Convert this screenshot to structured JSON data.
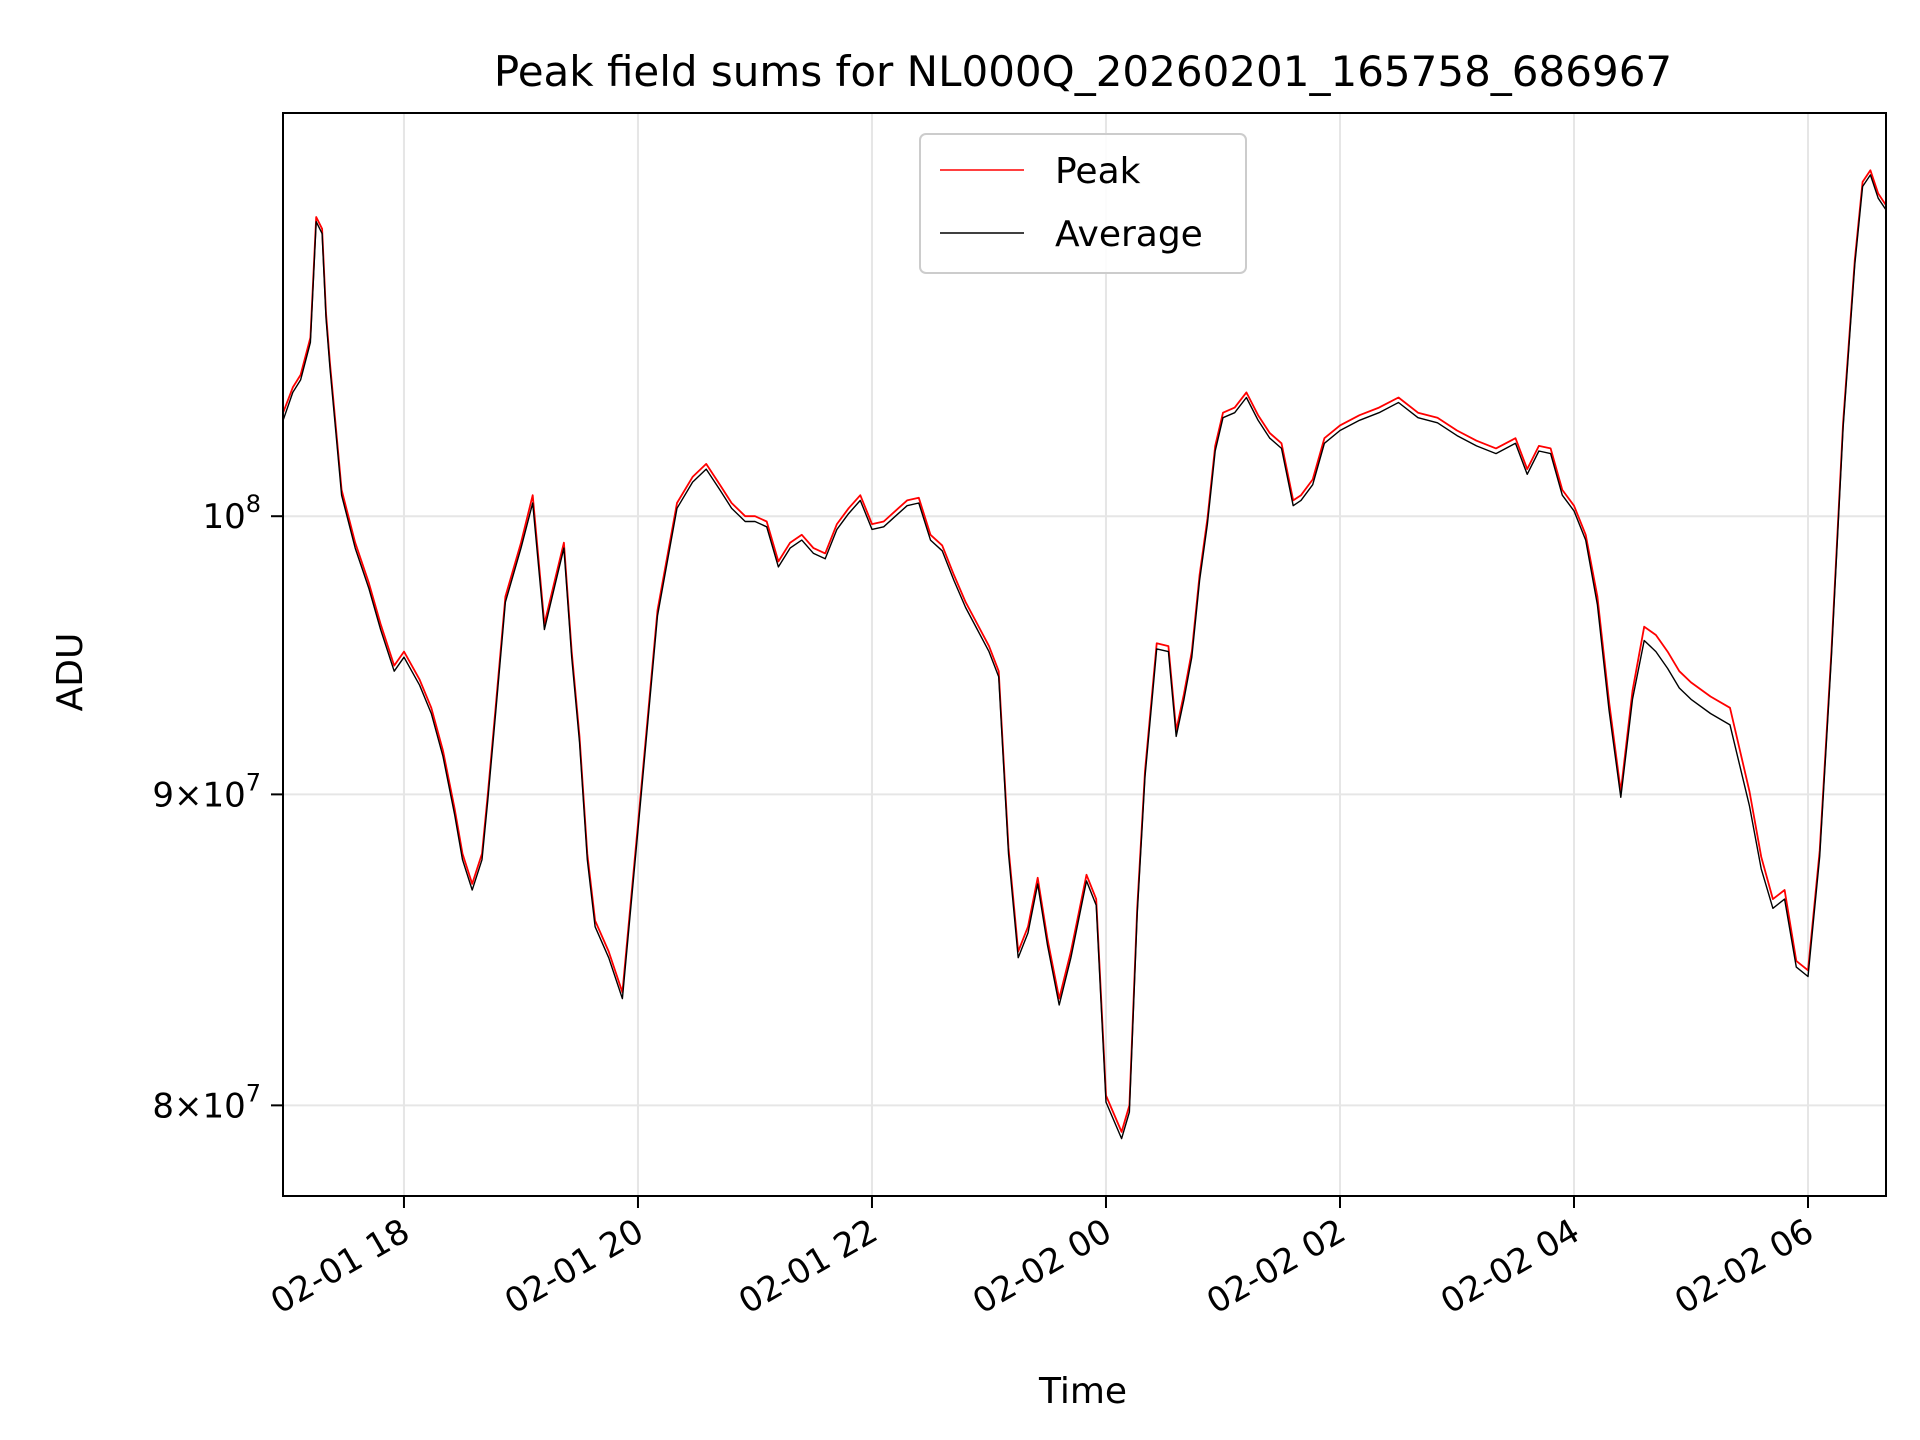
{
  "chart_data": {
    "type": "line",
    "title": "Peak field sums for NL000Q_20260201_165758_686967",
    "xlabel": "Time",
    "ylabel": "ADU",
    "x_scale": "time",
    "y_scale": "log",
    "xlim": [
      "2026-02-01T16:57:58",
      "2026-02-02T06:40:00"
    ],
    "ylim": [
      77300000,
      116500000
    ],
    "grid": true,
    "legend_position": "top-center",
    "x_ticks": [
      {
        "value": "2026-02-01T18:00:00",
        "label": "02-01 18"
      },
      {
        "value": "2026-02-01T20:00:00",
        "label": "02-01 20"
      },
      {
        "value": "2026-02-01T22:00:00",
        "label": "02-01 22"
      },
      {
        "value": "2026-02-02T00:00:00",
        "label": "02-02 00"
      },
      {
        "value": "2026-02-02T02:00:00",
        "label": "02-02 02"
      },
      {
        "value": "2026-02-02T04:00:00",
        "label": "02-02 04"
      },
      {
        "value": "2026-02-02T06:00:00",
        "label": "02-02 06"
      }
    ],
    "y_ticks": [
      {
        "value": 80000000,
        "base": "8",
        "exp": "7"
      },
      {
        "value": 90000000,
        "base": "9",
        "exp": "7"
      },
      {
        "value": 100000000,
        "base": "",
        "exp": "8"
      }
    ],
    "series": [
      {
        "name": "Peak",
        "color": "#ff0000",
        "x": [
          "2026-02-01T16:58:00",
          "2026-02-01T17:03:00",
          "2026-02-01T17:07:00",
          "2026-02-01T17:12:00",
          "2026-02-01T17:15:00",
          "2026-02-01T17:18:00",
          "2026-02-01T17:20:00",
          "2026-02-01T17:22:00",
          "2026-02-01T17:25:00",
          "2026-02-01T17:28:00",
          "2026-02-01T17:35:00",
          "2026-02-01T17:42:00",
          "2026-02-01T17:48:00",
          "2026-02-01T17:55:00",
          "2026-02-01T18:00:00",
          "2026-02-01T18:08:00",
          "2026-02-01T18:14:00",
          "2026-02-01T18:20:00",
          "2026-02-01T18:26:00",
          "2026-02-01T18:30:00",
          "2026-02-01T18:35:00",
          "2026-02-01T18:40:00",
          "2026-02-01T18:43:00",
          "2026-02-01T18:47:00",
          "2026-02-01T18:52:00",
          "2026-02-01T19:00:00",
          "2026-02-01T19:06:00",
          "2026-02-01T19:12:00",
          "2026-02-01T19:18:00",
          "2026-02-01T19:22:00",
          "2026-02-01T19:26:00",
          "2026-02-01T19:30:00",
          "2026-02-01T19:34:00",
          "2026-02-01T19:38:00",
          "2026-02-01T19:45:00",
          "2026-02-01T19:52:00",
          "2026-02-01T20:00:00",
          "2026-02-01T20:10:00",
          "2026-02-01T20:20:00",
          "2026-02-01T20:28:00",
          "2026-02-01T20:35:00",
          "2026-02-01T20:42:00",
          "2026-02-01T20:48:00",
          "2026-02-01T20:55:00",
          "2026-02-01T21:00:00",
          "2026-02-01T21:06:00",
          "2026-02-01T21:12:00",
          "2026-02-01T21:18:00",
          "2026-02-01T21:24:00",
          "2026-02-01T21:30:00",
          "2026-02-01T21:36:00",
          "2026-02-01T21:42:00",
          "2026-02-01T21:48:00",
          "2026-02-01T21:54:00",
          "2026-02-01T22:00:00",
          "2026-02-01T22:06:00",
          "2026-02-01T22:12:00",
          "2026-02-01T22:18:00",
          "2026-02-01T22:24:00",
          "2026-02-01T22:30:00",
          "2026-02-01T22:36:00",
          "2026-02-01T22:42:00",
          "2026-02-01T22:48:00",
          "2026-02-01T22:54:00",
          "2026-02-01T23:00:00",
          "2026-02-01T23:05:00",
          "2026-02-01T23:10:00",
          "2026-02-01T23:15:00",
          "2026-02-01T23:20:00",
          "2026-02-01T23:25:00",
          "2026-02-01T23:30:00",
          "2026-02-01T23:36:00",
          "2026-02-01T23:42:00",
          "2026-02-01T23:50:00",
          "2026-02-01T23:55:00",
          "2026-02-02T00:00:00",
          "2026-02-02T00:08:00",
          "2026-02-02T00:12:00",
          "2026-02-02T00:16:00",
          "2026-02-02T00:20:00",
          "2026-02-02T00:26:00",
          "2026-02-02T00:32:00",
          "2026-02-02T00:36:00",
          "2026-02-02T00:40:00",
          "2026-02-02T00:44:00",
          "2026-02-02T00:48:00",
          "2026-02-02T00:52:00",
          "2026-02-02T00:56:00",
          "2026-02-02T01:00:00",
          "2026-02-02T01:06:00",
          "2026-02-02T01:12:00",
          "2026-02-02T01:18:00",
          "2026-02-02T01:24:00",
          "2026-02-02T01:30:00",
          "2026-02-02T01:36:00",
          "2026-02-02T01:40:00",
          "2026-02-02T01:46:00",
          "2026-02-02T01:52:00",
          "2026-02-02T02:00:00",
          "2026-02-02T02:10:00",
          "2026-02-02T02:20:00",
          "2026-02-02T02:30:00",
          "2026-02-02T02:40:00",
          "2026-02-02T02:50:00",
          "2026-02-02T03:00:00",
          "2026-02-02T03:10:00",
          "2026-02-02T03:20:00",
          "2026-02-02T03:30:00",
          "2026-02-02T03:36:00",
          "2026-02-02T03:42:00",
          "2026-02-02T03:48:00",
          "2026-02-02T03:54:00",
          "2026-02-02T04:00:00",
          "2026-02-02T04:06:00",
          "2026-02-02T04:12:00",
          "2026-02-02T04:18:00",
          "2026-02-02T04:24:00",
          "2026-02-02T04:30:00",
          "2026-02-02T04:36:00",
          "2026-02-02T04:42:00",
          "2026-02-02T04:48:00",
          "2026-02-02T04:54:00",
          "2026-02-02T05:00:00",
          "2026-02-02T05:10:00",
          "2026-02-02T05:20:00",
          "2026-02-02T05:30:00",
          "2026-02-02T05:36:00",
          "2026-02-02T05:42:00",
          "2026-02-02T05:48:00",
          "2026-02-02T05:54:00",
          "2026-02-02T06:00:00",
          "2026-02-02T06:06:00",
          "2026-02-02T06:12:00",
          "2026-02-02T06:18:00",
          "2026-02-02T06:24:00",
          "2026-02-02T06:28:00",
          "2026-02-02T06:32:00",
          "2026-02-02T06:36:00",
          "2026-02-02T06:40:00"
        ],
        "values": [
          104000000,
          105000000,
          105500000,
          107000000,
          112000000,
          111500000,
          108000000,
          106000000,
          103500000,
          101000000,
          99000000,
          97500000,
          96000000,
          94500000,
          95000000,
          94000000,
          93000000,
          91500000,
          89500000,
          88000000,
          87000000,
          88000000,
          90000000,
          93000000,
          97000000,
          99000000,
          100800000,
          96000000,
          97800000,
          99000000,
          95000000,
          92000000,
          88000000,
          85800000,
          84800000,
          83500000,
          89000000,
          96500000,
          100500000,
          101500000,
          102000000,
          101200000,
          100500000,
          100000000,
          100000000,
          99800000,
          98300000,
          99000000,
          99300000,
          98800000,
          98600000,
          99700000,
          100300000,
          100800000,
          99700000,
          99800000,
          100200000,
          100600000,
          100700000,
          99300000,
          98900000,
          97800000,
          96800000,
          96000000,
          95200000,
          94300000,
          88200000,
          84800000,
          85600000,
          87200000,
          85200000,
          83300000,
          84800000,
          87300000,
          86500000,
          80300000,
          79200000,
          80000000,
          86200000,
          90800000,
          95300000,
          95200000,
          92200000,
          93500000,
          95000000,
          97800000,
          99900000,
          102700000,
          104000000,
          104200000,
          104800000,
          103900000,
          103200000,
          102800000,
          100600000,
          100800000,
          101400000,
          103000000,
          103500000,
          103900000,
          104200000,
          104600000,
          104000000,
          103800000,
          103300000,
          102900000,
          102600000,
          103000000,
          101800000,
          102700000,
          102600000,
          101000000,
          100400000,
          99300000,
          97000000,
          93200000,
          90100000,
          93600000,
          95900000,
          95600000,
          95000000,
          94300000,
          93900000,
          93400000,
          93000000,
          90100000,
          87900000,
          86500000,
          86800000,
          84500000,
          84200000,
          88100000,
          95000000,
          103600000,
          110200000,
          113500000,
          114000000,
          113000000,
          112500000
        ]
      },
      {
        "name": "Average",
        "color": "#000000",
        "x": [
          "2026-02-01T16:58:00",
          "2026-02-01T17:03:00",
          "2026-02-01T17:07:00",
          "2026-02-01T17:12:00",
          "2026-02-01T17:15:00",
          "2026-02-01T17:18:00",
          "2026-02-01T17:20:00",
          "2026-02-01T17:22:00",
          "2026-02-01T17:25:00",
          "2026-02-01T17:28:00",
          "2026-02-01T17:35:00",
          "2026-02-01T17:42:00",
          "2026-02-01T17:48:00",
          "2026-02-01T17:55:00",
          "2026-02-01T18:00:00",
          "2026-02-01T18:08:00",
          "2026-02-01T18:14:00",
          "2026-02-01T18:20:00",
          "2026-02-01T18:26:00",
          "2026-02-01T18:30:00",
          "2026-02-01T18:35:00",
          "2026-02-01T18:40:00",
          "2026-02-01T18:43:00",
          "2026-02-01T18:47:00",
          "2026-02-01T18:52:00",
          "2026-02-01T19:00:00",
          "2026-02-01T19:06:00",
          "2026-02-01T19:12:00",
          "2026-02-01T19:18:00",
          "2026-02-01T19:22:00",
          "2026-02-01T19:26:00",
          "2026-02-01T19:30:00",
          "2026-02-01T19:34:00",
          "2026-02-01T19:38:00",
          "2026-02-01T19:45:00",
          "2026-02-01T19:52:00",
          "2026-02-01T20:00:00",
          "2026-02-01T20:10:00",
          "2026-02-01T20:20:00",
          "2026-02-01T20:28:00",
          "2026-02-01T20:35:00",
          "2026-02-01T20:42:00",
          "2026-02-01T20:48:00",
          "2026-02-01T20:55:00",
          "2026-02-01T21:00:00",
          "2026-02-01T21:06:00",
          "2026-02-01T21:12:00",
          "2026-02-01T21:18:00",
          "2026-02-01T21:24:00",
          "2026-02-01T21:30:00",
          "2026-02-01T21:36:00",
          "2026-02-01T21:42:00",
          "2026-02-01T21:48:00",
          "2026-02-01T21:54:00",
          "2026-02-01T22:00:00",
          "2026-02-01T22:06:00",
          "2026-02-01T22:12:00",
          "2026-02-01T22:18:00",
          "2026-02-01T22:24:00",
          "2026-02-01T22:30:00",
          "2026-02-01T22:36:00",
          "2026-02-01T22:42:00",
          "2026-02-01T22:48:00",
          "2026-02-01T22:54:00",
          "2026-02-01T23:00:00",
          "2026-02-01T23:05:00",
          "2026-02-01T23:10:00",
          "2026-02-01T23:15:00",
          "2026-02-01T23:20:00",
          "2026-02-01T23:25:00",
          "2026-02-01T23:30:00",
          "2026-02-01T23:36:00",
          "2026-02-01T23:42:00",
          "2026-02-01T23:50:00",
          "2026-02-01T23:55:00",
          "2026-02-02T00:00:00",
          "2026-02-02T00:08:00",
          "2026-02-02T00:12:00",
          "2026-02-02T00:16:00",
          "2026-02-02T00:20:00",
          "2026-02-02T00:26:00",
          "2026-02-02T00:32:00",
          "2026-02-02T00:36:00",
          "2026-02-02T00:40:00",
          "2026-02-02T00:44:00",
          "2026-02-02T00:48:00",
          "2026-02-02T00:52:00",
          "2026-02-02T00:56:00",
          "2026-02-02T01:00:00",
          "2026-02-02T01:06:00",
          "2026-02-02T01:12:00",
          "2026-02-02T01:18:00",
          "2026-02-02T01:24:00",
          "2026-02-02T01:30:00",
          "2026-02-02T01:36:00",
          "2026-02-02T01:40:00",
          "2026-02-02T01:46:00",
          "2026-02-02T01:52:00",
          "2026-02-02T02:00:00",
          "2026-02-02T02:10:00",
          "2026-02-02T02:20:00",
          "2026-02-02T02:30:00",
          "2026-02-02T02:40:00",
          "2026-02-02T02:50:00",
          "2026-02-02T03:00:00",
          "2026-02-02T03:10:00",
          "2026-02-02T03:20:00",
          "2026-02-02T03:30:00",
          "2026-02-02T03:36:00",
          "2026-02-02T03:42:00",
          "2026-02-02T03:48:00",
          "2026-02-02T03:54:00",
          "2026-02-02T04:00:00",
          "2026-02-02T04:06:00",
          "2026-02-02T04:12:00",
          "2026-02-02T04:18:00",
          "2026-02-02T04:24:00",
          "2026-02-02T04:30:00",
          "2026-02-02T04:36:00",
          "2026-02-02T04:42:00",
          "2026-02-02T04:48:00",
          "2026-02-02T04:54:00",
          "2026-02-02T05:00:00",
          "2026-02-02T05:10:00",
          "2026-02-02T05:20:00",
          "2026-02-02T05:30:00",
          "2026-02-02T05:36:00",
          "2026-02-02T05:42:00",
          "2026-02-02T05:48:00",
          "2026-02-02T05:54:00",
          "2026-02-02T06:00:00",
          "2026-02-02T06:06:00",
          "2026-02-02T06:12:00",
          "2026-02-02T06:18:00",
          "2026-02-02T06:24:00",
          "2026-02-02T06:28:00",
          "2026-02-02T06:32:00",
          "2026-02-02T06:36:00",
          "2026-02-02T06:40:00"
        ],
        "values": [
          103700000,
          104800000,
          105300000,
          106800000,
          111800000,
          111300000,
          107800000,
          105800000,
          103300000,
          100800000,
          98800000,
          97300000,
          95800000,
          94300000,
          94800000,
          93800000,
          92800000,
          91300000,
          89300000,
          87800000,
          86800000,
          87800000,
          89800000,
          92800000,
          96800000,
          98800000,
          100500000,
          95800000,
          97600000,
          98800000,
          94800000,
          91800000,
          87800000,
          85600000,
          84600000,
          83300000,
          88800000,
          96300000,
          100300000,
          101300000,
          101800000,
          101000000,
          100300000,
          99800000,
          99800000,
          99600000,
          98100000,
          98800000,
          99100000,
          98600000,
          98400000,
          99500000,
          100100000,
          100600000,
          99500000,
          99600000,
          100000000,
          100400000,
          100500000,
          99100000,
          98700000,
          97600000,
          96600000,
          95800000,
          95000000,
          94100000,
          88000000,
          84600000,
          85400000,
          87000000,
          85000000,
          83100000,
          84600000,
          87100000,
          86300000,
          80100000,
          79000000,
          79800000,
          86000000,
          90600000,
          95100000,
          95000000,
          92000000,
          93300000,
          94800000,
          97600000,
          99700000,
          102500000,
          103800000,
          104000000,
          104600000,
          103700000,
          103000000,
          102600000,
          100400000,
          100600000,
          101200000,
          102800000,
          103300000,
          103700000,
          104000000,
          104400000,
          103800000,
          103600000,
          103100000,
          102700000,
          102400000,
          102800000,
          101600000,
          102500000,
          102400000,
          100800000,
          100200000,
          99100000,
          96700000,
          92900000,
          89900000,
          93300000,
          95400000,
          95000000,
          94400000,
          93700000,
          93300000,
          92800000,
          92400000,
          89600000,
          87500000,
          86200000,
          86500000,
          84300000,
          84000000,
          87900000,
          94800000,
          103400000,
          110000000,
          113300000,
          113800000,
          112800000,
          112300000
        ]
      }
    ]
  }
}
